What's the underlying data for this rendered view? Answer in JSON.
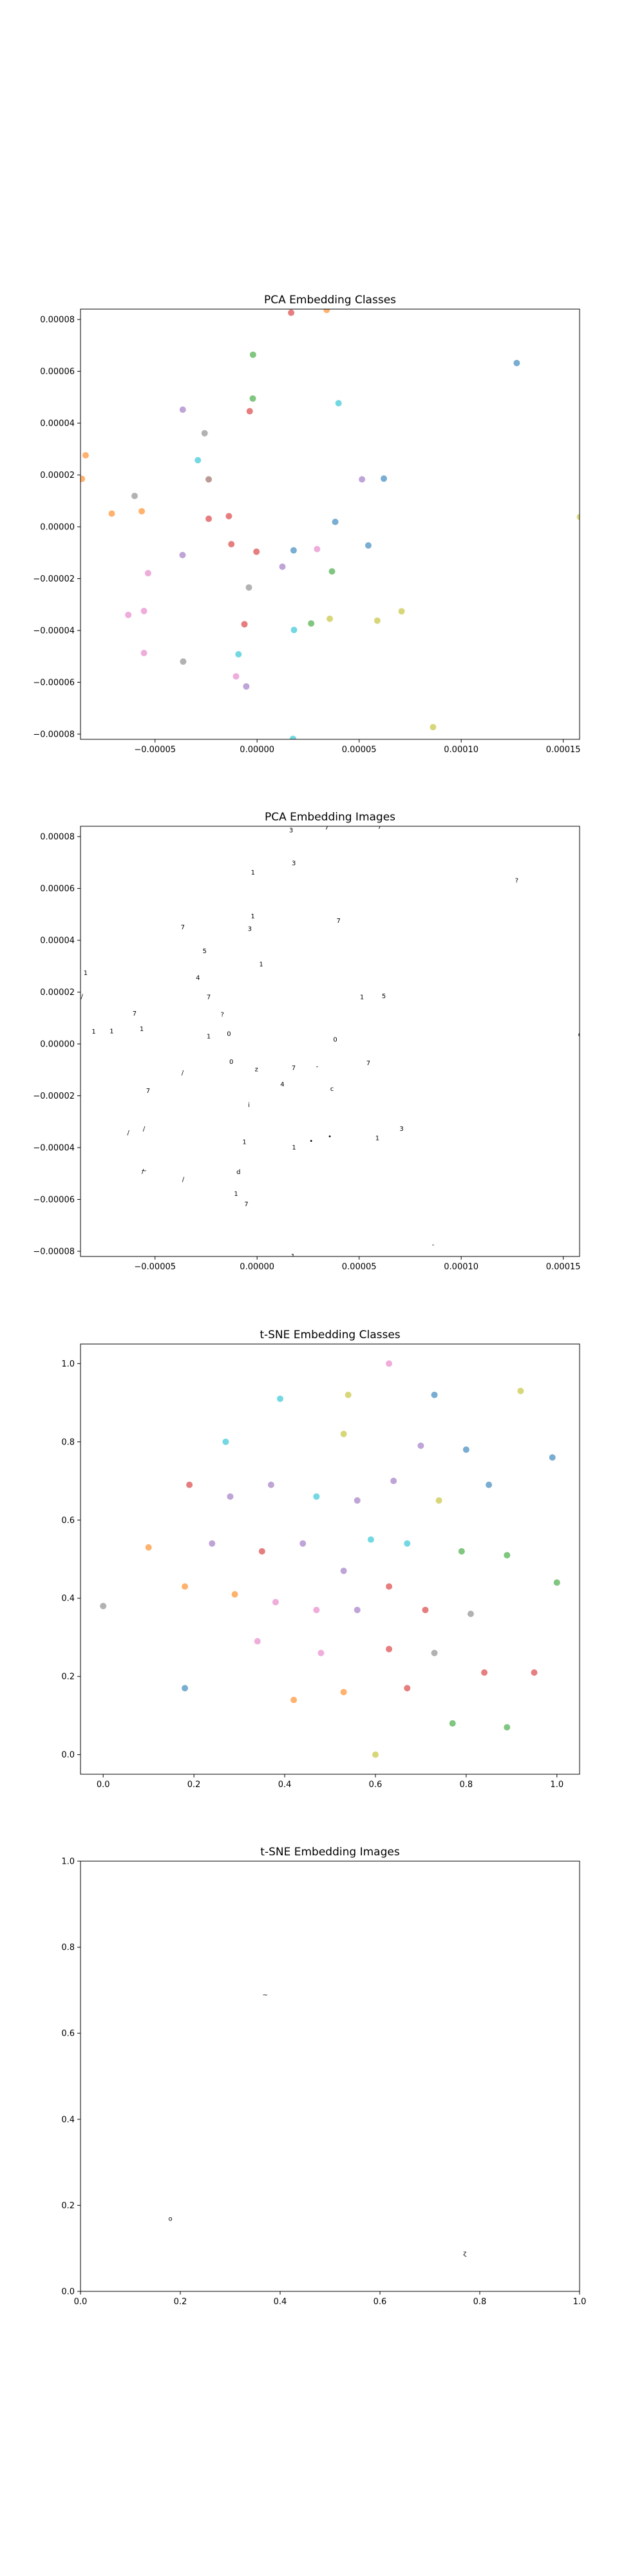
{
  "colors": [
    "#1f77b4",
    "#ff7f0e",
    "#2ca02c",
    "#d62728",
    "#9467bd",
    "#8c564b",
    "#e377c2",
    "#7f7f7f",
    "#bcbd22",
    "#17becf"
  ],
  "chart_data": [
    {
      "type": "scatter",
      "title": "PCA Embedding Classes",
      "xlim": [
        -8.65e-05,
        0.000158
      ],
      "ylim": [
        -8.2e-05,
        8.4e-05
      ],
      "xticks": [
        -5e-05,
        0.0,
        5e-05,
        0.0001,
        0.00015
      ],
      "xtick_labels": [
        "−0.00005",
        "0.00000",
        "0.00005",
        "0.00010",
        "0.00015"
      ],
      "yticks": [
        -8e-05,
        -6e-05,
        -4e-05,
        -2e-05,
        0.0,
        2e-05,
        4e-05,
        6e-05,
        8e-05
      ],
      "ytick_labels": [
        "−0.00008",
        "−0.00006",
        "−0.00004",
        "−0.00002",
        "0.00000",
        "0.00002",
        "0.00004",
        "0.00006",
        "0.00008"
      ],
      "grid": false,
      "points": [
        {
          "x": 1.67e-05,
          "y": 8.26e-05,
          "c": 3
        },
        {
          "x": 3.41e-05,
          "y": 8.37e-05,
          "c": 1
        },
        {
          "x": -2e-06,
          "y": 6.64e-05,
          "c": 2
        },
        {
          "x": 0.0001272,
          "y": 6.32e-05,
          "c": 0
        },
        {
          "x": -2.1e-06,
          "y": 4.95e-05,
          "c": 2
        },
        {
          "x": 3.99e-05,
          "y": 4.77e-05,
          "c": 9
        },
        {
          "x": -3.64e-05,
          "y": 4.52e-05,
          "c": 4
        },
        {
          "x": -3.6e-06,
          "y": 4.46e-05,
          "c": 3
        },
        {
          "x": -2.57e-05,
          "y": 3.61e-05,
          "c": 7
        },
        {
          "x": -8.4e-05,
          "y": 2.76e-05,
          "c": 1
        },
        {
          "x": -2.9e-05,
          "y": 2.57e-05,
          "c": 9
        },
        {
          "x": -8.58e-05,
          "y": 1.85e-05,
          "c": 1
        },
        {
          "x": -2.37e-05,
          "y": 1.83e-05,
          "c": 5
        },
        {
          "x": 5.14e-05,
          "y": 1.83e-05,
          "c": 4
        },
        {
          "x": 6.21e-05,
          "y": 1.86e-05,
          "c": 0
        },
        {
          "x": -6e-05,
          "y": 1.19e-05,
          "c": 7
        },
        {
          "x": -7.12e-05,
          "y": 5.1e-06,
          "c": 1
        },
        {
          "x": -5.65e-05,
          "y": 6e-06,
          "c": 1
        },
        {
          "x": -2.37e-05,
          "y": 3.1e-06,
          "c": 3
        },
        {
          "x": -1.38e-05,
          "y": 4.1e-06,
          "c": 3
        },
        {
          "x": 3.83e-05,
          "y": 1.9e-06,
          "c": 0
        },
        {
          "x": 0.0001582,
          "y": 3.8e-06,
          "c": 8
        },
        {
          "x": -1.26e-05,
          "y": -6.7e-06,
          "c": 3
        },
        {
          "x": 5.45e-05,
          "y": -7.2e-06,
          "c": 0
        },
        {
          "x": -3e-07,
          "y": -9.6e-06,
          "c": 3
        },
        {
          "x": 1.79e-05,
          "y": -9.1e-06,
          "c": 0
        },
        {
          "x": 2.94e-05,
          "y": -8.6e-06,
          "c": 6
        },
        {
          "x": -3.65e-05,
          "y": -1.09e-05,
          "c": 4
        },
        {
          "x": 1.24e-05,
          "y": -1.54e-05,
          "c": 4
        },
        {
          "x": 3.67e-05,
          "y": -1.72e-05,
          "c": 2
        },
        {
          "x": -5.34e-05,
          "y": -1.79e-05,
          "c": 6
        },
        {
          "x": -4e-06,
          "y": -2.34e-05,
          "c": 7
        },
        {
          "x": -6.31e-05,
          "y": -3.4e-05,
          "c": 6
        },
        {
          "x": -5.54e-05,
          "y": -3.25e-05,
          "c": 6
        },
        {
          "x": 7.08e-05,
          "y": -3.26e-05,
          "c": 8
        },
        {
          "x": 3.56e-05,
          "y": -3.55e-05,
          "c": 8
        },
        {
          "x": 5.89e-05,
          "y": -3.62e-05,
          "c": 8
        },
        {
          "x": 2.65e-05,
          "y": -3.73e-05,
          "c": 2
        },
        {
          "x": -6.2e-06,
          "y": -3.76e-05,
          "c": 3
        },
        {
          "x": 1.81e-05,
          "y": -3.98e-05,
          "c": 9
        },
        {
          "x": -5.54e-05,
          "y": -4.87e-05,
          "c": 6
        },
        {
          "x": -9.1e-06,
          "y": -4.92e-05,
          "c": 9
        },
        {
          "x": -3.62e-05,
          "y": -5.2e-05,
          "c": 7
        },
        {
          "x": -1.03e-05,
          "y": -5.77e-05,
          "c": 6
        },
        {
          "x": -5.3e-06,
          "y": -6.16e-05,
          "c": 4
        },
        {
          "x": 8.62e-05,
          "y": -7.73e-05,
          "c": 8
        },
        {
          "x": 1.76e-05,
          "y": -8.18e-05,
          "c": 9
        }
      ]
    },
    {
      "type": "scatter",
      "title": "PCA Embedding Images",
      "xlim": [
        -8.65e-05,
        0.000158
      ],
      "ylim": [
        -8.2e-05,
        8.4e-05
      ],
      "xticks": [
        -5e-05,
        0.0,
        5e-05,
        0.0001,
        0.00015
      ],
      "xtick_labels": [
        "−0.00005",
        "0.00000",
        "0.00005",
        "0.00010",
        "0.00015"
      ],
      "yticks": [
        -8e-05,
        -6e-05,
        -4e-05,
        -2e-05,
        0.0,
        2e-05,
        4e-05,
        6e-05,
        8e-05
      ],
      "ytick_labels": [
        "−0.00008",
        "−0.00006",
        "−0.00004",
        "−0.00002",
        "0.00000",
        "0.00002",
        "0.00004",
        "0.00006",
        "0.00008"
      ],
      "grid": false,
      "point_labels": [
        "3",
        "7",
        "7",
        "1",
        "?",
        "1",
        "7",
        "7",
        "3",
        "5",
        "1",
        "4",
        "/",
        "7",
        "1",
        "5",
        "7",
        "1",
        "1",
        "1",
        "0",
        "0",
        "o",
        "0",
        "7",
        "z",
        "7",
        "-",
        "/",
        "4",
        "c",
        "7",
        "i",
        "/",
        "/",
        "3",
        "•",
        "1",
        "•",
        "1",
        "1",
        "~",
        "d",
        "/",
        "1",
        "7",
        "-",
        "1",
        "1",
        "/",
        "1",
        "?",
        "3"
      ],
      "points": [
        {
          "x": 1.67e-05,
          "y": 8.26e-05
        },
        {
          "x": 3.41e-05,
          "y": 8.37e-05
        },
        {
          "x": 6e-05,
          "y": 8.4e-05
        },
        {
          "x": -2e-06,
          "y": 6.64e-05
        },
        {
          "x": 0.0001272,
          "y": 6.32e-05
        },
        {
          "x": -2.1e-06,
          "y": 4.95e-05
        },
        {
          "x": 3.99e-05,
          "y": 4.77e-05
        },
        {
          "x": -3.64e-05,
          "y": 4.52e-05
        },
        {
          "x": -3.6e-06,
          "y": 4.46e-05
        },
        {
          "x": -2.57e-05,
          "y": 3.61e-05
        },
        {
          "x": -8.4e-05,
          "y": 2.76e-05
        },
        {
          "x": -2.9e-05,
          "y": 2.57e-05
        },
        {
          "x": -8.58e-05,
          "y": 1.85e-05
        },
        {
          "x": -2.37e-05,
          "y": 1.83e-05
        },
        {
          "x": 5.14e-05,
          "y": 1.83e-05
        },
        {
          "x": 6.21e-05,
          "y": 1.86e-05
        },
        {
          "x": -6e-05,
          "y": 1.19e-05
        },
        {
          "x": -7.12e-05,
          "y": 5.1e-06
        },
        {
          "x": -5.65e-05,
          "y": 6e-06
        },
        {
          "x": -2.37e-05,
          "y": 3.1e-06
        },
        {
          "x": -1.38e-05,
          "y": 4.1e-06
        },
        {
          "x": 3.83e-05,
          "y": 1.9e-06
        },
        {
          "x": 0.0001582,
          "y": 3.8e-06
        },
        {
          "x": -1.26e-05,
          "y": -6.7e-06
        },
        {
          "x": 5.45e-05,
          "y": -7.2e-06
        },
        {
          "x": -3e-07,
          "y": -9.6e-06
        },
        {
          "x": 1.79e-05,
          "y": -9.1e-06
        },
        {
          "x": 2.94e-05,
          "y": -8.6e-06
        },
        {
          "x": -3.65e-05,
          "y": -1.09e-05
        },
        {
          "x": 1.24e-05,
          "y": -1.54e-05
        },
        {
          "x": 3.67e-05,
          "y": -1.72e-05
        },
        {
          "x": -5.34e-05,
          "y": -1.79e-05
        },
        {
          "x": -4e-06,
          "y": -2.34e-05
        },
        {
          "x": -6.31e-05,
          "y": -3.4e-05
        },
        {
          "x": -5.54e-05,
          "y": -3.25e-05
        },
        {
          "x": 7.08e-05,
          "y": -3.26e-05
        },
        {
          "x": 3.56e-05,
          "y": -3.55e-05
        },
        {
          "x": 5.89e-05,
          "y": -3.62e-05
        },
        {
          "x": 2.65e-05,
          "y": -3.73e-05
        },
        {
          "x": -6.2e-06,
          "y": -3.76e-05
        },
        {
          "x": 1.81e-05,
          "y": -3.98e-05
        },
        {
          "x": -5.54e-05,
          "y": -4.87e-05
        },
        {
          "x": -9.1e-06,
          "y": -4.92e-05
        },
        {
          "x": -3.62e-05,
          "y": -5.2e-05
        },
        {
          "x": -1.03e-05,
          "y": -5.77e-05
        },
        {
          "x": -5.3e-06,
          "y": -6.16e-05
        },
        {
          "x": 8.62e-05,
          "y": -7.73e-05
        },
        {
          "x": 1.76e-05,
          "y": -8.18e-05
        },
        {
          "x": -8e-05,
          "y": 5e-06
        },
        {
          "x": -5.6e-05,
          "y": -4.9e-05
        },
        {
          "x": 2e-06,
          "y": 3.1e-05
        },
        {
          "x": -1.7e-05,
          "y": 1.15e-05
        },
        {
          "x": 1.8e-05,
          "y": 7e-05
        }
      ]
    },
    {
      "type": "scatter",
      "title": "t-SNE Embedding Classes",
      "xlim": [
        -0.05,
        1.05
      ],
      "ylim": [
        -0.05,
        1.05
      ],
      "xticks": [
        0.0,
        0.2,
        0.4,
        0.6,
        0.8,
        1.0
      ],
      "xtick_labels": [
        "0.0",
        "0.2",
        "0.4",
        "0.6",
        "0.8",
        "1.0"
      ],
      "yticks": [
        0.0,
        0.2,
        0.4,
        0.6,
        0.8,
        1.0
      ],
      "ytick_labels": [
        "0.0",
        "0.2",
        "0.4",
        "0.6",
        "0.8",
        "1.0"
      ],
      "grid": false,
      "points": [
        {
          "x": 0.63,
          "y": 1.0,
          "c": 6
        },
        {
          "x": 0.39,
          "y": 0.91,
          "c": 9
        },
        {
          "x": 0.54,
          "y": 0.92,
          "c": 8
        },
        {
          "x": 0.73,
          "y": 0.92,
          "c": 0
        },
        {
          "x": 0.92,
          "y": 0.93,
          "c": 8
        },
        {
          "x": 0.27,
          "y": 0.8,
          "c": 9
        },
        {
          "x": 0.53,
          "y": 0.82,
          "c": 8
        },
        {
          "x": 0.7,
          "y": 0.79,
          "c": 4
        },
        {
          "x": 0.8,
          "y": 0.78,
          "c": 0
        },
        {
          "x": 0.99,
          "y": 0.76,
          "c": 0
        },
        {
          "x": 0.19,
          "y": 0.69,
          "c": 3
        },
        {
          "x": 0.37,
          "y": 0.69,
          "c": 4
        },
        {
          "x": 0.64,
          "y": 0.7,
          "c": 4
        },
        {
          "x": 0.85,
          "y": 0.69,
          "c": 0
        },
        {
          "x": 0.28,
          "y": 0.66,
          "c": 4
        },
        {
          "x": 0.47,
          "y": 0.66,
          "c": 9
        },
        {
          "x": 0.56,
          "y": 0.65,
          "c": 4
        },
        {
          "x": 0.74,
          "y": 0.65,
          "c": 8
        },
        {
          "x": 0.59,
          "y": 0.55,
          "c": 9
        },
        {
          "x": 0.67,
          "y": 0.54,
          "c": 9
        },
        {
          "x": 0.1,
          "y": 0.53,
          "c": 1
        },
        {
          "x": 0.24,
          "y": 0.54,
          "c": 4
        },
        {
          "x": 0.35,
          "y": 0.52,
          "c": 3
        },
        {
          "x": 0.44,
          "y": 0.54,
          "c": 4
        },
        {
          "x": 0.79,
          "y": 0.52,
          "c": 2
        },
        {
          "x": 0.89,
          "y": 0.51,
          "c": 2
        },
        {
          "x": 0.0,
          "y": 0.38,
          "c": 7
        },
        {
          "x": 0.18,
          "y": 0.43,
          "c": 1
        },
        {
          "x": 0.29,
          "y": 0.41,
          "c": 1
        },
        {
          "x": 0.53,
          "y": 0.47,
          "c": 4
        },
        {
          "x": 0.63,
          "y": 0.43,
          "c": 3
        },
        {
          "x": 1.0,
          "y": 0.44,
          "c": 2
        },
        {
          "x": 0.38,
          "y": 0.39,
          "c": 6
        },
        {
          "x": 0.47,
          "y": 0.37,
          "c": 6
        },
        {
          "x": 0.56,
          "y": 0.37,
          "c": 4
        },
        {
          "x": 0.71,
          "y": 0.37,
          "c": 3
        },
        {
          "x": 0.81,
          "y": 0.36,
          "c": 7
        },
        {
          "x": 0.34,
          "y": 0.29,
          "c": 6
        },
        {
          "x": 0.48,
          "y": 0.26,
          "c": 6
        },
        {
          "x": 0.63,
          "y": 0.27,
          "c": 3
        },
        {
          "x": 0.73,
          "y": 0.26,
          "c": 7
        },
        {
          "x": 0.18,
          "y": 0.17,
          "c": 0
        },
        {
          "x": 0.42,
          "y": 0.14,
          "c": 1
        },
        {
          "x": 0.53,
          "y": 0.16,
          "c": 1
        },
        {
          "x": 0.67,
          "y": 0.17,
          "c": 3
        },
        {
          "x": 0.84,
          "y": 0.21,
          "c": 3
        },
        {
          "x": 0.95,
          "y": 0.21,
          "c": 3
        },
        {
          "x": 0.77,
          "y": 0.08,
          "c": 2
        },
        {
          "x": 0.89,
          "y": 0.07,
          "c": 2
        },
        {
          "x": 0.6,
          "y": 0.0,
          "c": 8
        }
      ]
    },
    {
      "type": "scatter",
      "title": "t-SNE Embedding Images",
      "xlim": [
        0.0,
        1.0
      ],
      "ylim": [
        0.0,
        1.0
      ],
      "xticks": [
        0.0,
        0.2,
        0.4,
        0.6,
        0.8,
        1.0
      ],
      "xtick_labels": [
        "0.0",
        "0.2",
        "0.4",
        "0.6",
        "0.8",
        "1.0"
      ],
      "yticks": [
        0.0,
        0.2,
        0.4,
        0.6,
        0.8,
        1.0
      ],
      "ytick_labels": [
        "0.0",
        "0.2",
        "0.4",
        "0.6",
        "0.8",
        "1.0"
      ],
      "grid": false,
      "point_labels": [
        "~",
        "o",
        "ɀ"
      ],
      "points": [
        {
          "x": 0.37,
          "y": 0.69
        },
        {
          "x": 0.18,
          "y": 0.17
        },
        {
          "x": 0.77,
          "y": 0.09
        }
      ]
    }
  ]
}
